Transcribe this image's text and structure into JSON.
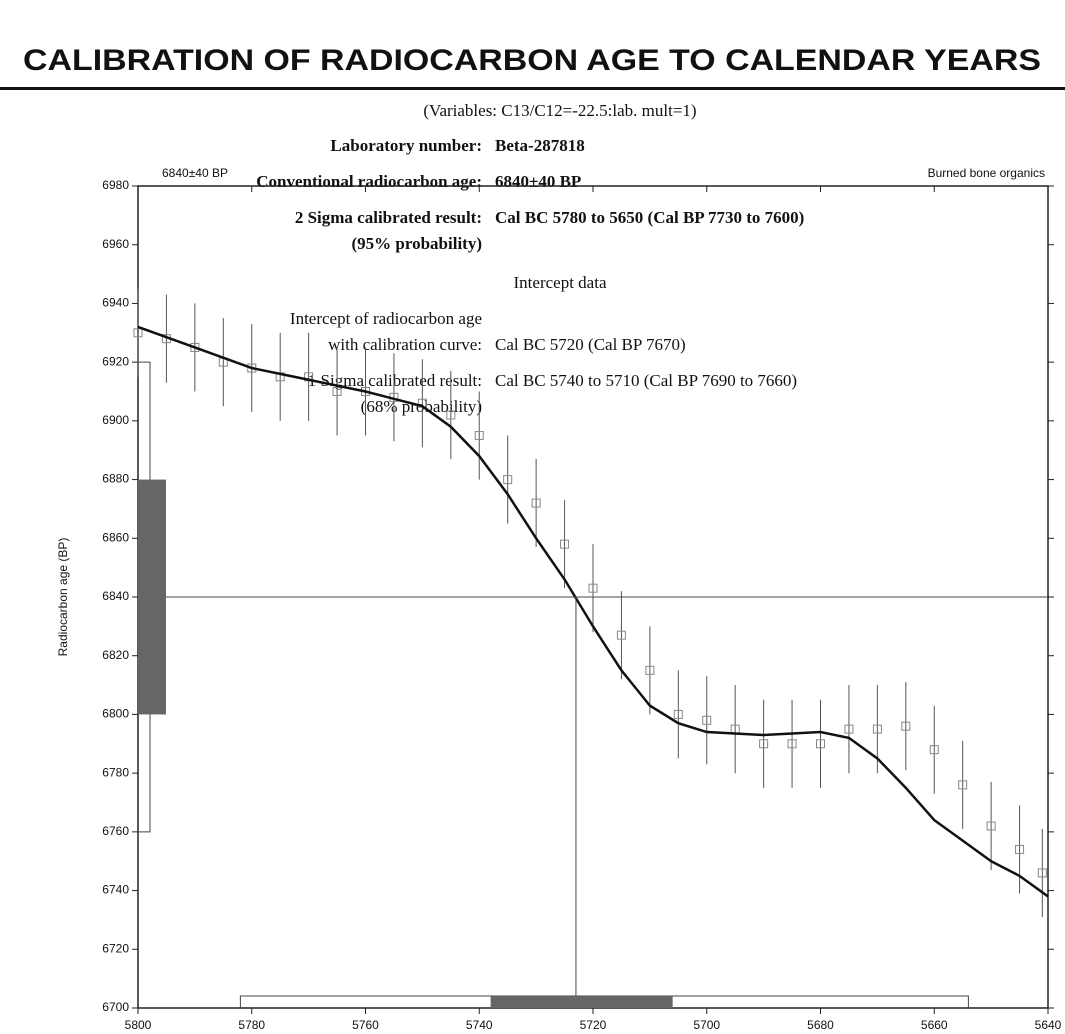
{
  "header": {
    "title": "CALIBRATION OF RADIOCARBON  AGE TO CALENDAR YEARS"
  },
  "variables": "(Variables: C13/C12=-22.5:lab. mult=1)",
  "results": [
    {
      "label": "Laboratory number:",
      "value": "Beta-287818"
    },
    {
      "label": "Conventional radiocarbon age:",
      "value": "6840±40 BP"
    },
    {
      "label": "2 Sigma calibrated result:",
      "sub": "(95% probability)",
      "value": "Cal BC 5780 to 5650 (Cal BP 7730 to 7600)"
    }
  ],
  "intercept_heading": "Intercept data",
  "intercept": [
    {
      "label": [
        "Intercept of radiocarbon age",
        "with calibration curve:"
      ],
      "value": "Cal BC 5720 (Cal BP 7670)"
    },
    {
      "label": [
        "1 Sigma calibrated result:",
        "(68% probability)"
      ],
      "value": "Cal BC 5740 to 5710 (Cal BP 7690 to 7660)"
    }
  ],
  "chart_data": {
    "type": "calibration",
    "annotations": [
      "6840±40 BP",
      "Burned bone organics"
    ],
    "ylabel": "Radiocarbon age (BP)",
    "xlim": [
      5800,
      5640
    ],
    "ylim": [
      6700,
      6980
    ],
    "xticks": [
      5800,
      5780,
      5760,
      5740,
      5720,
      5700,
      5680,
      5660,
      5640
    ],
    "yticks": [
      6700,
      6720,
      6740,
      6760,
      6780,
      6800,
      6820,
      6840,
      6860,
      6880,
      6900,
      6920,
      6940,
      6960,
      6980
    ],
    "curve": {
      "x": [
        5800,
        5790,
        5780,
        5770,
        5760,
        5750,
        5745,
        5740,
        5735,
        5730,
        5725,
        5720,
        5715,
        5710,
        5705,
        5700,
        5690,
        5680,
        5675,
        5670,
        5665,
        5660,
        5655,
        5650,
        5645,
        5640
      ],
      "y": [
        6932,
        6925,
        6918,
        6914,
        6910,
        6905,
        6898,
        6888,
        6875,
        6860,
        6846,
        6830,
        6815,
        6803,
        6797,
        6794,
        6793,
        6794,
        6792,
        6785,
        6775,
        6764,
        6757,
        6750,
        6745,
        6738
      ]
    },
    "points": {
      "x": [
        5800,
        5795,
        5790,
        5785,
        5780,
        5775,
        5770,
        5765,
        5760,
        5755,
        5750,
        5745,
        5740,
        5735,
        5730,
        5725,
        5720,
        5715,
        5710,
        5705,
        5700,
        5695,
        5690,
        5685,
        5680,
        5675,
        5670,
        5665,
        5660,
        5655,
        5650,
        5645,
        5641
      ],
      "y": [
        6930,
        6928,
        6925,
        6920,
        6918,
        6915,
        6915,
        6910,
        6910,
        6908,
        6906,
        6902,
        6895,
        6880,
        6872,
        6858,
        6843,
        6827,
        6815,
        6800,
        6798,
        6795,
        6790,
        6790,
        6790,
        6795,
        6795,
        6796,
        6788,
        6776,
        6762,
        6754,
        6746
      ],
      "error": 15
    },
    "age": 6840,
    "age_one_sigma": [
      6800,
      6880
    ],
    "age_two_sigma": [
      6760,
      6920
    ],
    "intercept_x": 5723,
    "one_sigma_range": [
      5738,
      5706
    ],
    "two_sigma_range": [
      5782,
      5654
    ]
  }
}
